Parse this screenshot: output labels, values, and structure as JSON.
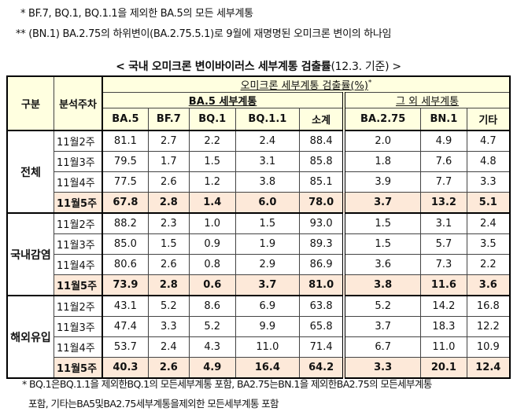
{
  "notes": [
    "* BF.7, BQ.1, BQ.1.1을 제외한 BA.5의 모든 세부계통",
    "** (BN.1) BA.2.75의 하위변이(BA.2.75.5.1)로 9월에 재명명된 오미크론 변이의 하나임"
  ],
  "title": {
    "main": "< 국내 오미크론 변이바이러스 세부계통 검출률",
    "sub": "(12.3. 기준) >"
  },
  "table": {
    "h_group": "구분",
    "h_week": "분석주차",
    "h_rate": "오미크론 세부계통 검출률(%)",
    "h_rate_mark": "*",
    "h_ba5": "BA.5 세부계통",
    "h_other": "그 외 세부계통",
    "columns": [
      "BA.5",
      "BF.7",
      "BQ.1",
      "BQ.1.1",
      "소계",
      "BA.2.75",
      "BN.1",
      "기타"
    ],
    "groups": [
      {
        "name": "전체",
        "rows": [
          {
            "week": "11월2주",
            "values": [
              "81.1",
              "2.7",
              "2.2",
              "2.4",
              "88.4",
              "2.0",
              "4.9",
              "4.7"
            ]
          },
          {
            "week": "11월3주",
            "values": [
              "79.5",
              "1.7",
              "1.5",
              "3.1",
              "85.8",
              "1.8",
              "7.6",
              "4.8"
            ]
          },
          {
            "week": "11월4주",
            "values": [
              "77.5",
              "2.6",
              "1.2",
              "3.8",
              "85.1",
              "3.9",
              "7.7",
              "3.3"
            ]
          },
          {
            "week": "11월5주",
            "values": [
              "67.8",
              "2.8",
              "1.4",
              "6.0",
              "78.0",
              "3.7",
              "13.2",
              "5.1"
            ],
            "highlight": true
          }
        ]
      },
      {
        "name": "국내감염",
        "rows": [
          {
            "week": "11월2주",
            "values": [
              "88.2",
              "2.3",
              "1.0",
              "1.5",
              "93.0",
              "1.5",
              "3.1",
              "2.4"
            ]
          },
          {
            "week": "11월3주",
            "values": [
              "85.0",
              "1.5",
              "0.9",
              "1.9",
              "89.3",
              "1.5",
              "5.7",
              "3.5"
            ]
          },
          {
            "week": "11월4주",
            "values": [
              "80.6",
              "2.6",
              "0.8",
              "2.9",
              "86.9",
              "3.6",
              "7.3",
              "2.2"
            ]
          },
          {
            "week": "11월5주",
            "values": [
              "73.9",
              "2.8",
              "0.6",
              "3.7",
              "81.0",
              "3.8",
              "11.6",
              "3.6"
            ],
            "highlight": true
          }
        ]
      },
      {
        "name": "해외유입",
        "rows": [
          {
            "week": "11월2주",
            "values": [
              "43.1",
              "5.2",
              "8.6",
              "6.9",
              "63.8",
              "5.2",
              "14.2",
              "16.8"
            ]
          },
          {
            "week": "11월3주",
            "values": [
              "47.4",
              "3.3",
              "5.2",
              "9.9",
              "65.8",
              "3.7",
              "18.3",
              "12.2"
            ]
          },
          {
            "week": "11월4주",
            "values": [
              "53.7",
              "2.4",
              "4.3",
              "11.0",
              "71.4",
              "6.7",
              "11.0",
              "10.9"
            ]
          },
          {
            "week": "11월5주",
            "values": [
              "40.3",
              "2.6",
              "4.9",
              "16.4",
              "64.2",
              "3.3",
              "20.1",
              "12.4"
            ],
            "highlight": true
          }
        ]
      }
    ]
  },
  "footnote": [
    "* BQ.1은BQ.1.1을 제외한BQ.1의 모든세부계통 포함, BA2.75는BN.1을 제외한BA2.75의 모든세부계통",
    "포함, 기타는BA5및BA2.75세부계통을제외한 모든세부계통 포함"
  ]
}
